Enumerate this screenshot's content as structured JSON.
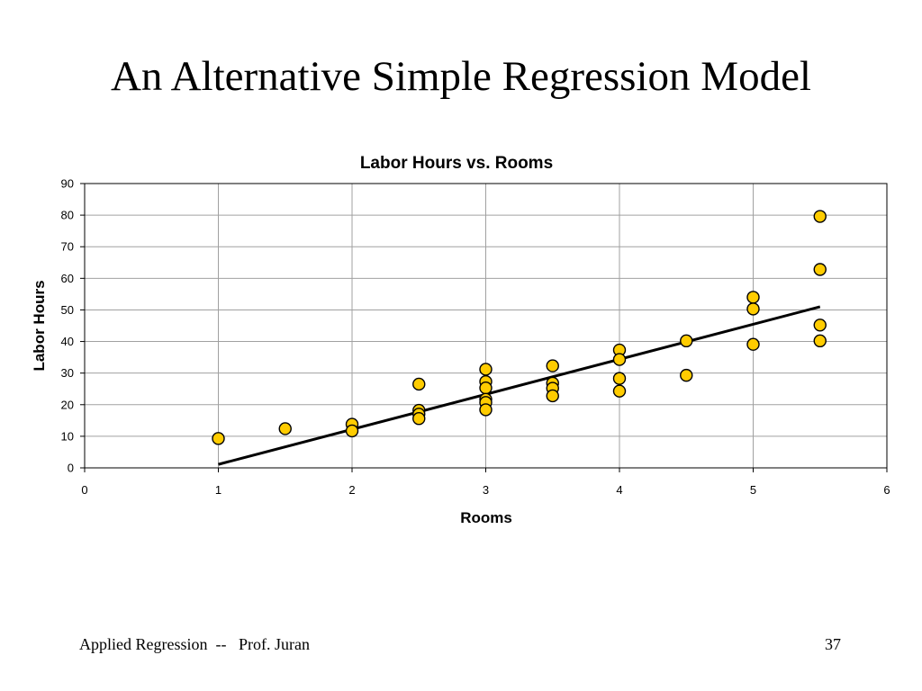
{
  "slide": {
    "title": "An Alternative Simple Regression Model",
    "footer_left": "Applied Regression  --   Prof. Juran",
    "page_number": "37"
  },
  "colors": {
    "marker_fill": "#FFCC00",
    "marker_stroke": "#000000",
    "gridline": "#A0A0A0",
    "trendline": "#000000"
  },
  "chart_data": {
    "type": "scatter",
    "title": "Labor Hours vs. Rooms",
    "xlabel": "Rooms",
    "ylabel": "Labor Hours",
    "xlim": [
      0,
      6
    ],
    "ylim": [
      0,
      90
    ],
    "x_ticks": [
      0,
      1,
      2,
      3,
      4,
      5,
      6
    ],
    "y_ticks": [
      0,
      10,
      20,
      30,
      40,
      50,
      60,
      70,
      80,
      90
    ],
    "grid": true,
    "legend": "none",
    "points": [
      {
        "x": 1,
        "y": 9.3
      },
      {
        "x": 1.5,
        "y": 12.4
      },
      {
        "x": 2,
        "y": 13.8
      },
      {
        "x": 2,
        "y": 11.7
      },
      {
        "x": 2.5,
        "y": 26.5
      },
      {
        "x": 2.5,
        "y": 18.2
      },
      {
        "x": 2.5,
        "y": 17.0
      },
      {
        "x": 2.5,
        "y": 15.6
      },
      {
        "x": 3,
        "y": 31.2
      },
      {
        "x": 3,
        "y": 27.3
      },
      {
        "x": 3,
        "y": 25.3
      },
      {
        "x": 3,
        "y": 21.7
      },
      {
        "x": 3,
        "y": 20.7
      },
      {
        "x": 3,
        "y": 18.4
      },
      {
        "x": 3.5,
        "y": 32.3
      },
      {
        "x": 3.5,
        "y": 26.8
      },
      {
        "x": 3.5,
        "y": 25.2
      },
      {
        "x": 3.5,
        "y": 22.8
      },
      {
        "x": 4,
        "y": 37.3
      },
      {
        "x": 4,
        "y": 34.3
      },
      {
        "x": 4,
        "y": 28.3
      },
      {
        "x": 4,
        "y": 24.3
      },
      {
        "x": 4.5,
        "y": 40.2
      },
      {
        "x": 4.5,
        "y": 29.3
      },
      {
        "x": 5,
        "y": 54.0
      },
      {
        "x": 5,
        "y": 50.3
      },
      {
        "x": 5,
        "y": 39.1
      },
      {
        "x": 5.5,
        "y": 79.6
      },
      {
        "x": 5.5,
        "y": 62.8
      },
      {
        "x": 5.5,
        "y": 45.2
      },
      {
        "x": 5.5,
        "y": 40.2
      }
    ],
    "trendline": {
      "x_start": 1,
      "x_end": 5.5,
      "y_start": 1.1,
      "y_end": 51.0
    }
  }
}
